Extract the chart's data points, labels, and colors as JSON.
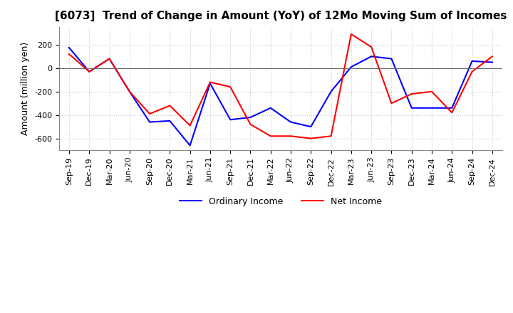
{
  "title": "[6073]  Trend of Change in Amount (YoY) of 12Mo Moving Sum of Incomes",
  "ylabel": "Amount (million yen)",
  "ylim": [
    -700,
    350
  ],
  "yticks": [
    200,
    0,
    -200,
    -400,
    -600
  ],
  "x_labels": [
    "Sep-19",
    "Dec-19",
    "Mar-20",
    "Jun-20",
    "Sep-20",
    "Dec-20",
    "Mar-21",
    "Jun-21",
    "Sep-21",
    "Dec-21",
    "Mar-22",
    "Jun-22",
    "Sep-22",
    "Dec-22",
    "Mar-23",
    "Jun-23",
    "Sep-23",
    "Dec-23",
    "Mar-24",
    "Jun-24",
    "Sep-24",
    "Dec-24"
  ],
  "ordinary_income": [
    175,
    -30,
    80,
    -200,
    -460,
    -450,
    -660,
    -130,
    -440,
    -420,
    -340,
    -460,
    -500,
    -200,
    10,
    100,
    80,
    -340,
    -340,
    -340,
    60,
    50
  ],
  "net_income": [
    120,
    -30,
    80,
    -200,
    -390,
    -320,
    -490,
    -120,
    -160,
    -480,
    -580,
    -580,
    -600,
    -580,
    290,
    180,
    -300,
    -220,
    -200,
    -380,
    -30,
    100
  ],
  "ordinary_income_color": "#0000ff",
  "net_income_color": "#ff0000",
  "background_color": "#ffffff",
  "grid_color": "#c8c8c8",
  "title_fontsize": 11,
  "axis_fontsize": 9,
  "tick_fontsize": 8,
  "legend_fontsize": 9
}
